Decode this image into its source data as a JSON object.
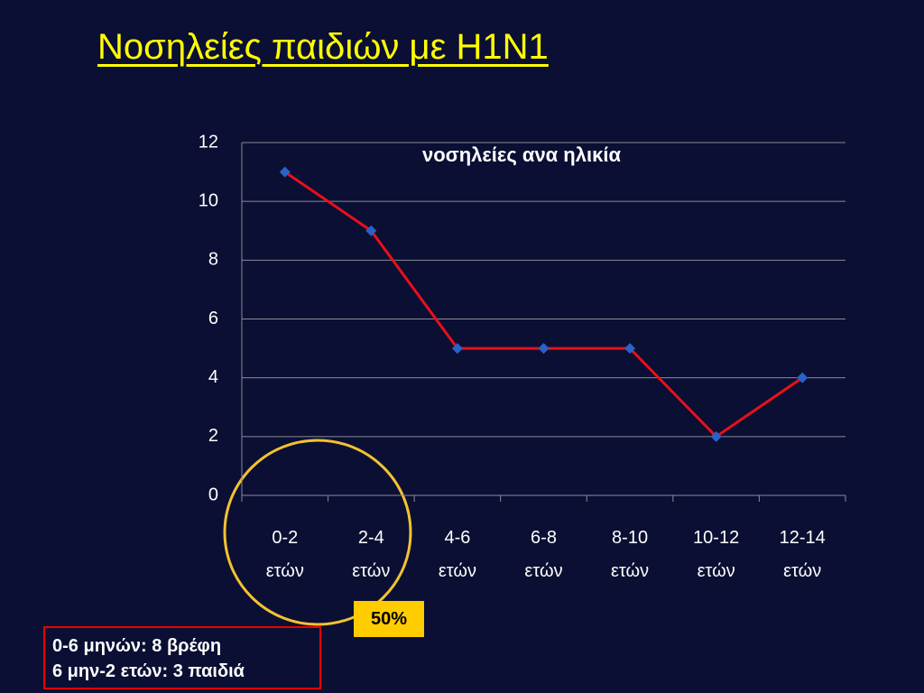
{
  "slide_title": "Νοσηλείες παιδιών με H1N1",
  "chart_data": {
    "type": "line",
    "title": "νοσηλείες ανα ηλικία",
    "categories": [
      "0-2 ετών",
      "2-4 ετών",
      "4-6 ετών",
      "6-8 ετών",
      "8-10 ετών",
      "10-12 ετών",
      "12-14 ετών"
    ],
    "values": [
      11,
      9,
      5,
      5,
      5,
      2,
      4
    ],
    "color": "#e8101a",
    "marker_color": "#2a62c8",
    "ylim": [
      0,
      12
    ],
    "yticks": [
      0,
      2,
      4,
      6,
      8,
      10,
      12
    ],
    "grid": true
  },
  "annotations": {
    "highlight": "50%",
    "note_lines": [
      "0-6 μηνών: 8 βρέφη",
      "6 μην-2 ετών: 3 παιδιά"
    ]
  }
}
